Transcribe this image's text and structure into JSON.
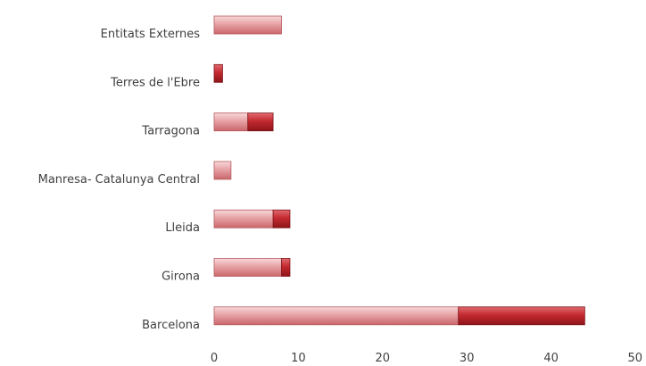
{
  "chart_data": {
    "type": "bar",
    "orientation": "horizontal",
    "stacked": true,
    "categories": [
      "Entitats Externes",
      "Terres de l'Ebre",
      "Tarragona",
      "Manresa- Catalunya Central",
      "Lleida",
      "Girona",
      "Barcelona"
    ],
    "series": [
      {
        "values": [
          8,
          0,
          4,
          2,
          7,
          8,
          29
        ]
      },
      {
        "values": [
          0,
          1,
          3,
          0,
          2,
          1,
          15
        ]
      }
    ],
    "xlim": [
      0,
      50
    ],
    "xticks": [
      "0",
      "10",
      "20",
      "30",
      "40",
      "50"
    ],
    "grid": false,
    "legend": "none",
    "colors": {
      "series1": "#e8a0a3",
      "series2": "#c0282e"
    }
  }
}
